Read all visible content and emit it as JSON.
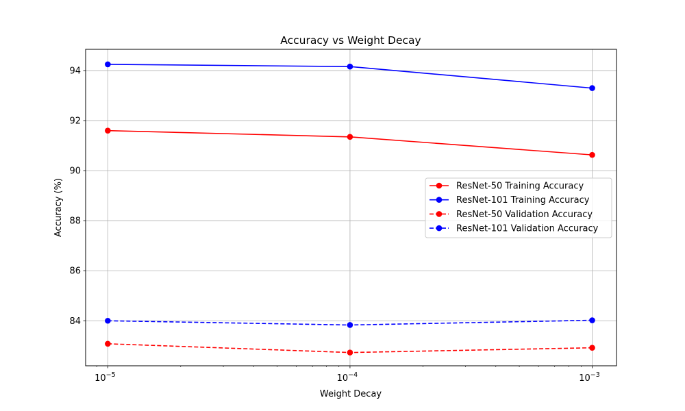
{
  "chart_data": {
    "type": "line",
    "title": "Accuracy vs Weight Decay",
    "xlabel": "Weight Decay",
    "ylabel": "Accuracy (%)",
    "xscale": "log",
    "x": [
      1e-05,
      0.0001,
      0.001
    ],
    "x_tick_labels": [
      {
        "base": "10",
        "exp": "−5"
      },
      {
        "base": "10",
        "exp": "−4"
      },
      {
        "base": "10",
        "exp": "−3"
      }
    ],
    "xlim": [
      8.1e-06,
      0.00126
    ],
    "ylim": [
      82.2,
      94.85
    ],
    "y_ticks": [
      84,
      86,
      88,
      90,
      92,
      94
    ],
    "grid": true,
    "legend_position": "center-right",
    "series": [
      {
        "name": "ResNet-50 Training Accuracy",
        "values": [
          91.6,
          91.35,
          90.63
        ],
        "color": "#ff0000",
        "style": "solid"
      },
      {
        "name": "ResNet-101 Training Accuracy",
        "values": [
          94.25,
          94.16,
          93.3
        ],
        "color": "#0000ff",
        "style": "solid"
      },
      {
        "name": "ResNet-50 Validation Accuracy",
        "values": [
          83.08,
          82.73,
          82.92
        ],
        "color": "#ff0000",
        "style": "dashed"
      },
      {
        "name": "ResNet-101 Validation Accuracy",
        "values": [
          84.0,
          83.83,
          84.02
        ],
        "color": "#0000ff",
        "style": "dashed"
      }
    ]
  }
}
